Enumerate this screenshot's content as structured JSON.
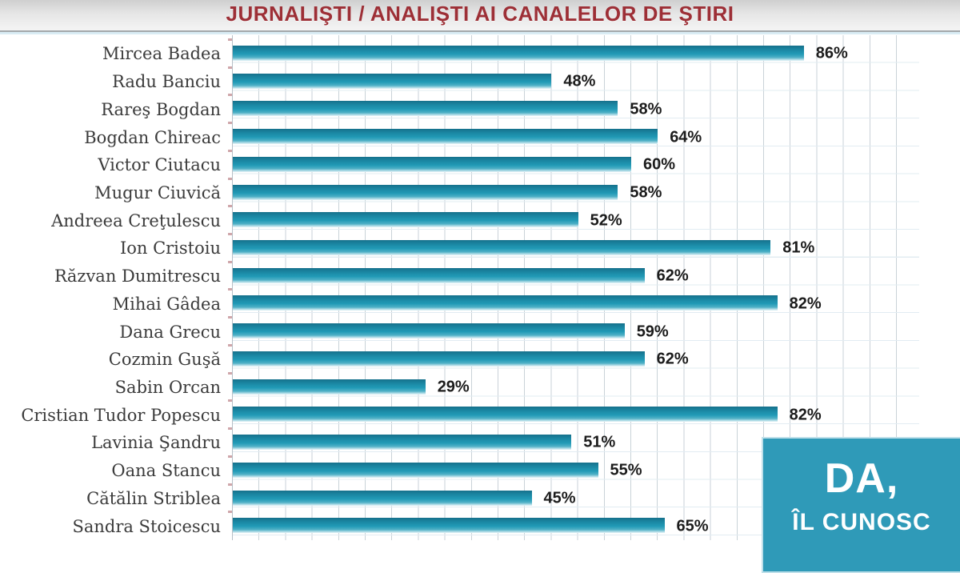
{
  "title": "JURNALIŞTI / ANALIŞTI AI CANALELOR DE ŞTIRI",
  "overlay": {
    "line1": "DA,",
    "line2": "ÎL CUNOSC"
  },
  "colors": {
    "title_red": "#9d2f36",
    "bar_teal": "#1e93af",
    "overlay_box": "#2f9ab8",
    "grid_line": "#c9d2d8"
  },
  "unit": "%",
  "chart_data": {
    "type": "bar",
    "orientation": "horizontal",
    "title": "JURNALIŞTI / ANALIŞTI AI CANALELOR DE ŞTIRI",
    "xlabel": "",
    "ylabel": "",
    "xlim": [
      0,
      100
    ],
    "grid": true,
    "unit": "%",
    "bar_color": "#1e93af",
    "categories": [
      "Mircea Badea",
      "Radu Banciu",
      "Rareş Bogdan",
      "Bogdan Chireac",
      "Victor Ciutacu",
      "Mugur Ciuvică",
      "Andreea Creţulescu",
      "Ion Cristoiu",
      "Răzvan Dumitrescu",
      "Mihai Gâdea",
      "Dana Grecu",
      "Cozmin Guşă",
      "Sabin Orcan",
      "Cristian Tudor Popescu",
      "Lavinia Şandru",
      "Oana Stancu",
      "Cătălin Striblea",
      "Sandra Stoicescu"
    ],
    "values": [
      86,
      48,
      58,
      64,
      60,
      58,
      52,
      81,
      62,
      82,
      59,
      62,
      29,
      82,
      51,
      55,
      45,
      65
    ]
  }
}
